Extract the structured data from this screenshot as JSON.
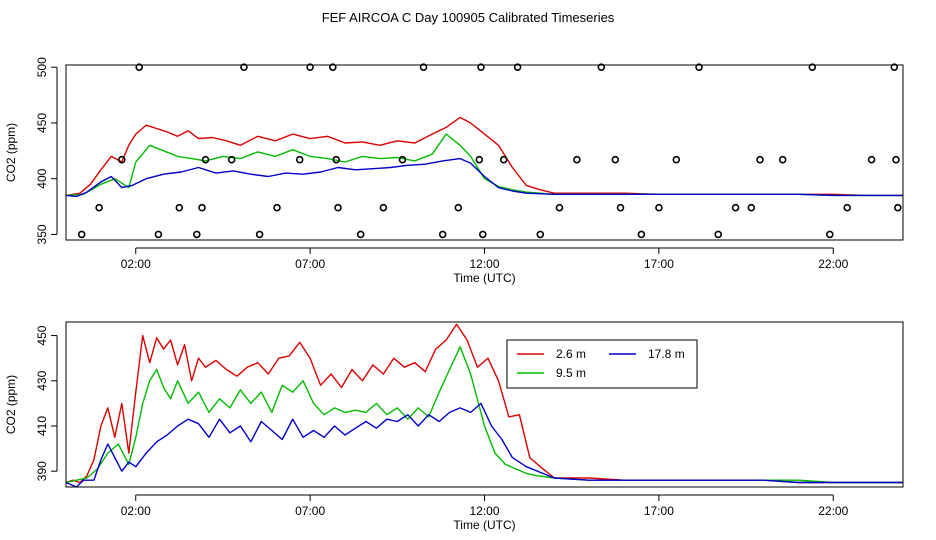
{
  "title": "FEF AIRCOA C  Day 100905  Calibrated Timeseries",
  "series_colors": {
    "2.6 m": "#dd0000",
    "9.5 m": "#00bb00",
    "17.8 m": "#0000cc"
  },
  "chart_data": [
    {
      "id": "top",
      "type": "line+scatter",
      "xlabel": "Time (UTC)",
      "ylabel": "CO2 (ppm)",
      "xlim": [
        0,
        24
      ],
      "ylim": [
        345,
        502
      ],
      "xticks": [
        2,
        7,
        12,
        17,
        22
      ],
      "xtick_labels": [
        "02:00",
        "07:00",
        "12:00",
        "17:00",
        "22:00"
      ],
      "yticks": [
        350,
        400,
        450,
        500
      ],
      "ytick_labels": [
        "350",
        "400",
        "450",
        "500"
      ],
      "series": [
        {
          "name": "2.6 m",
          "color": "#dd0000",
          "x": [
            0,
            0.4,
            0.7,
            1.0,
            1.3,
            1.6,
            1.8,
            2.0,
            2.3,
            2.6,
            2.9,
            3.2,
            3.5,
            3.8,
            4.2,
            4.6,
            5.0,
            5.5,
            6.0,
            6.5,
            7.0,
            7.5,
            8.0,
            8.5,
            9.0,
            9.5,
            10.0,
            10.5,
            10.9,
            11.3,
            11.6,
            12.0,
            12.4,
            12.8,
            13.2,
            13.6,
            14,
            15,
            16,
            17,
            18,
            19,
            20,
            21,
            22,
            23,
            24
          ],
          "values": [
            385,
            387,
            395,
            408,
            420,
            415,
            430,
            440,
            448,
            445,
            442,
            438,
            443,
            436,
            437,
            434,
            430,
            438,
            434,
            440,
            436,
            438,
            432,
            433,
            430,
            434,
            432,
            440,
            446,
            455,
            450,
            440,
            430,
            410,
            394,
            390,
            387,
            387,
            387,
            386,
            386,
            386,
            386,
            386,
            386,
            385,
            385
          ]
        },
        {
          "name": "9.5 m",
          "color": "#00bb00",
          "x": [
            0,
            0.5,
            1.0,
            1.4,
            1.8,
            2.0,
            2.4,
            2.8,
            3.2,
            3.6,
            4.0,
            4.5,
            5.0,
            5.5,
            6.0,
            6.5,
            7.0,
            7.5,
            8.0,
            8.5,
            9.0,
            9.5,
            10.0,
            10.5,
            10.9,
            11.3,
            11.6,
            12.0,
            12.4,
            12.8,
            13.2,
            13.6,
            14,
            15,
            16,
            17,
            18,
            19,
            20,
            21,
            22,
            23,
            24
          ],
          "values": [
            385,
            386,
            395,
            400,
            392,
            415,
            430,
            425,
            420,
            418,
            416,
            420,
            418,
            424,
            420,
            426,
            420,
            418,
            415,
            420,
            418,
            419,
            416,
            422,
            440,
            430,
            420,
            400,
            393,
            390,
            388,
            387,
            386,
            386,
            386,
            386,
            386,
            386,
            386,
            386,
            385,
            385,
            385
          ]
        },
        {
          "name": "17.8 m",
          "color": "#0000cc",
          "x": [
            0,
            0.3,
            0.6,
            1.0,
            1.3,
            1.6,
            1.9,
            2.3,
            2.8,
            3.3,
            3.8,
            4.3,
            4.8,
            5.3,
            5.8,
            6.3,
            6.8,
            7.3,
            7.8,
            8.3,
            8.8,
            9.3,
            9.8,
            10.3,
            10.8,
            11.3,
            11.6,
            12.0,
            12.4,
            12.8,
            13.2,
            14,
            15,
            16,
            17,
            18,
            19,
            20,
            21,
            22,
            23,
            24
          ],
          "values": [
            385,
            384,
            388,
            397,
            402,
            392,
            394,
            400,
            404,
            406,
            410,
            405,
            407,
            404,
            402,
            405,
            404,
            406,
            410,
            408,
            409,
            410,
            412,
            413,
            416,
            418,
            414,
            402,
            392,
            389,
            387,
            386,
            386,
            386,
            386,
            386,
            386,
            386,
            386,
            385,
            385,
            385
          ]
        }
      ],
      "markers": {
        "symbol": "open circle",
        "x": [
          0.45,
          0.95,
          1.6,
          2.1,
          2.65,
          3.25,
          3.75,
          3.9,
          4.0,
          4.75,
          5.1,
          5.55,
          6.05,
          6.7,
          7.0,
          7.65,
          7.75,
          7.8,
          8.45,
          9.1,
          9.65,
          10.25,
          10.8,
          11.25,
          11.85,
          11.9,
          11.95,
          12.55,
          12.95,
          13.6,
          14.15,
          14.65,
          15.35,
          15.75,
          15.9,
          16.5,
          17.0,
          17.5,
          18.15,
          18.7,
          19.2,
          19.65,
          19.9,
          20.55,
          21.4,
          21.9,
          22.4,
          23.1,
          23.75,
          23.8,
          23.85
        ],
        "y": [
          350,
          374,
          417,
          500,
          350,
          374,
          350,
          374,
          417,
          417,
          500,
          350,
          374,
          417,
          500,
          500,
          417,
          374,
          350,
          374,
          417,
          500,
          350,
          374,
          417,
          500,
          350,
          417,
          500,
          350,
          374,
          417,
          500,
          417,
          374,
          350,
          374,
          417,
          500,
          350,
          374,
          374,
          417,
          417,
          500,
          350,
          374,
          417,
          500,
          417,
          374
        ]
      }
    },
    {
      "id": "bottom",
      "type": "line",
      "xlabel": "Time (UTC)",
      "ylabel": "CO2 (ppm)",
      "xlim": [
        0,
        24
      ],
      "ylim": [
        383,
        456
      ],
      "xticks": [
        2,
        7,
        12,
        17,
        22
      ],
      "xtick_labels": [
        "02:00",
        "07:00",
        "12:00",
        "17:00",
        "22:00"
      ],
      "yticks": [
        390,
        410,
        430,
        450
      ],
      "ytick_labels": [
        "390",
        "410",
        "430",
        "450"
      ],
      "legend": {
        "entries": [
          "2.6 m",
          "9.5 m",
          "17.8 m"
        ],
        "placement": "top-right"
      },
      "series": [
        {
          "name": "2.6 m",
          "color": "#dd0000",
          "x": [
            0,
            0.2,
            0.4,
            0.6,
            0.8,
            1.0,
            1.2,
            1.4,
            1.6,
            1.8,
            2.0,
            2.2,
            2.4,
            2.6,
            2.8,
            3.0,
            3.2,
            3.4,
            3.6,
            3.8,
            4.0,
            4.3,
            4.6,
            4.9,
            5.2,
            5.5,
            5.8,
            6.1,
            6.4,
            6.7,
            7.0,
            7.3,
            7.6,
            7.9,
            8.2,
            8.5,
            8.8,
            9.1,
            9.4,
            9.7,
            10.0,
            10.3,
            10.6,
            10.9,
            11.2,
            11.5,
            11.8,
            12.1,
            12.4,
            12.7,
            13.0,
            13.3,
            13.6,
            14,
            15,
            16,
            17,
            18,
            19,
            20,
            21,
            22,
            23,
            24
          ],
          "values": [
            385,
            386,
            385,
            388,
            395,
            410,
            418,
            405,
            420,
            398,
            425,
            450,
            438,
            449,
            444,
            448,
            437,
            446,
            430,
            440,
            436,
            439,
            435,
            432,
            436,
            438,
            433,
            440,
            441,
            447,
            440,
            428,
            433,
            427,
            435,
            430,
            437,
            433,
            440,
            436,
            438,
            434,
            444,
            448,
            455,
            448,
            436,
            440,
            430,
            414,
            415,
            396,
            392,
            387,
            387,
            386,
            386,
            386,
            386,
            386,
            385,
            385,
            385,
            385
          ]
        },
        {
          "name": "9.5 m",
          "color": "#00bb00",
          "x": [
            0,
            0.3,
            0.6,
            0.9,
            1.2,
            1.5,
            1.8,
            2.0,
            2.2,
            2.4,
            2.6,
            2.8,
            3.0,
            3.2,
            3.5,
            3.8,
            4.1,
            4.4,
            4.7,
            5.0,
            5.3,
            5.6,
            5.9,
            6.2,
            6.5,
            6.8,
            7.1,
            7.4,
            7.7,
            8.0,
            8.3,
            8.6,
            8.9,
            9.2,
            9.5,
            9.8,
            10.1,
            10.4,
            10.7,
            11.0,
            11.3,
            11.6,
            12.0,
            12.3,
            12.6,
            12.9,
            13.2,
            13.5,
            14,
            15,
            16,
            17,
            18,
            19,
            20,
            21,
            22,
            23,
            24
          ],
          "values": [
            385,
            386,
            387,
            391,
            398,
            402,
            393,
            405,
            420,
            430,
            435,
            427,
            422,
            430,
            420,
            425,
            416,
            422,
            418,
            426,
            420,
            425,
            416,
            428,
            425,
            430,
            420,
            415,
            418,
            416,
            417,
            416,
            420,
            415,
            418,
            413,
            418,
            414,
            425,
            435,
            445,
            433,
            410,
            398,
            393,
            391,
            389,
            388,
            387,
            386,
            386,
            386,
            386,
            386,
            386,
            386,
            385,
            385,
            385
          ]
        },
        {
          "name": "17.8 m",
          "color": "#0000cc",
          "x": [
            0,
            0.3,
            0.5,
            0.8,
            1.0,
            1.2,
            1.4,
            1.6,
            1.8,
            2.0,
            2.3,
            2.6,
            2.9,
            3.2,
            3.5,
            3.8,
            4.1,
            4.4,
            4.7,
            5.0,
            5.3,
            5.6,
            5.9,
            6.2,
            6.5,
            6.8,
            7.1,
            7.4,
            7.7,
            8.0,
            8.3,
            8.6,
            8.9,
            9.2,
            9.5,
            9.8,
            10.1,
            10.4,
            10.7,
            11.0,
            11.3,
            11.6,
            11.9,
            12.2,
            12.5,
            12.8,
            13.2,
            14,
            15,
            16,
            17,
            18,
            19,
            20,
            21,
            22,
            23,
            24
          ],
          "values": [
            385,
            383,
            386,
            386,
            395,
            402,
            396,
            390,
            394,
            392,
            398,
            403,
            406,
            410,
            413,
            411,
            405,
            413,
            407,
            410,
            403,
            412,
            408,
            404,
            413,
            405,
            408,
            405,
            410,
            406,
            409,
            412,
            409,
            413,
            412,
            415,
            410,
            415,
            412,
            416,
            418,
            416,
            420,
            410,
            404,
            396,
            392,
            387,
            386,
            386,
            386,
            386,
            386,
            386,
            385,
            385,
            385,
            385
          ]
        }
      ]
    }
  ]
}
